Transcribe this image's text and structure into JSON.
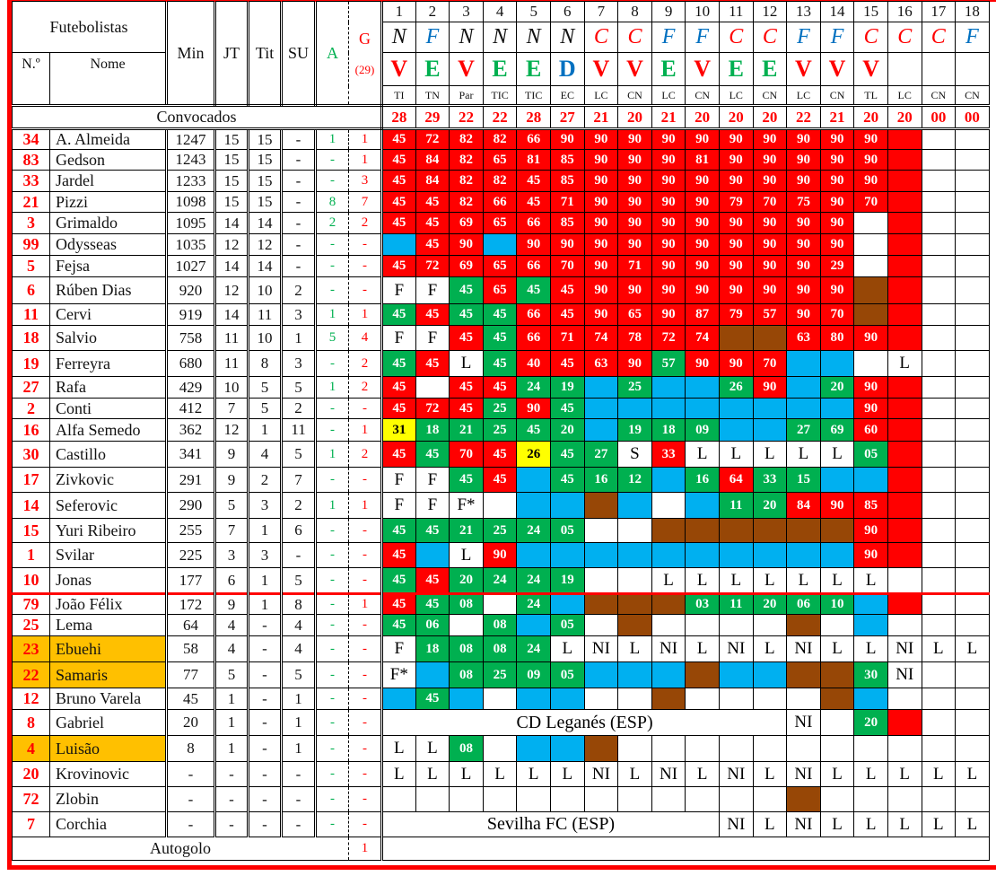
{
  "header": {
    "title": "Futebolistas",
    "no": "N.º",
    "name": "Nome",
    "min": "Min",
    "jt": "JT",
    "tit": "Tit",
    "su": "SU",
    "a": "A",
    "g": "G",
    "g_total": "(29)",
    "convocados": "Convocados"
  },
  "colors": {
    "R": "#ff0000",
    "G": "#00b050",
    "B": "#00b0f0",
    "N": "#974706",
    "Y": "#ffff00",
    "W": "#ffffff",
    "venue_N": "#111111",
    "venue_F": "#0070c0",
    "venue_C": "#ff0000",
    "result_V": "#ff0000",
    "result_E": "#00b050",
    "result_D": "#0070c0",
    "highlight": "#ffc000"
  },
  "matches": [
    {
      "n": "1",
      "venue": "N",
      "result": "V",
      "comp": "TI",
      "squad": "28"
    },
    {
      "n": "2",
      "venue": "F",
      "result": "E",
      "comp": "TN",
      "squad": "29"
    },
    {
      "n": "3",
      "venue": "N",
      "result": "V",
      "comp": "Par",
      "squad": "22"
    },
    {
      "n": "4",
      "venue": "N",
      "result": "E",
      "comp": "TIC",
      "squad": "22"
    },
    {
      "n": "5",
      "venue": "N",
      "result": "E",
      "comp": "TIC",
      "squad": "28"
    },
    {
      "n": "6",
      "venue": "N",
      "result": "D",
      "comp": "EC",
      "squad": "27"
    },
    {
      "n": "7",
      "venue": "C",
      "result": "V",
      "comp": "LC",
      "squad": "21"
    },
    {
      "n": "8",
      "venue": "C",
      "result": "V",
      "comp": "CN",
      "squad": "20"
    },
    {
      "n": "9",
      "venue": "F",
      "result": "E",
      "comp": "LC",
      "squad": "21"
    },
    {
      "n": "10",
      "venue": "F",
      "result": "V",
      "comp": "CN",
      "squad": "20"
    },
    {
      "n": "11",
      "venue": "C",
      "result": "E",
      "comp": "LC",
      "squad": "20"
    },
    {
      "n": "12",
      "venue": "C",
      "result": "E",
      "comp": "CN",
      "squad": "20"
    },
    {
      "n": "13",
      "venue": "F",
      "result": "V",
      "comp": "LC",
      "squad": "22"
    },
    {
      "n": "14",
      "venue": "F",
      "result": "V",
      "comp": "CN",
      "squad": "21"
    },
    {
      "n": "15",
      "venue": "C",
      "result": "V",
      "comp": "TL",
      "squad": "20"
    },
    {
      "n": "16",
      "venue": "C",
      "result": "",
      "comp": "LC",
      "squad": "20"
    },
    {
      "n": "17",
      "venue": "C",
      "result": "",
      "comp": "CN",
      "squad": "00"
    },
    {
      "n": "18",
      "venue": "F",
      "result": "",
      "comp": "CN",
      "squad": "00"
    }
  ],
  "players": [
    {
      "no": "34",
      "name": "A. Almeida",
      "min": "1247",
      "jt": "15",
      "tit": "15",
      "su": "-",
      "a": "1",
      "g": "1",
      "colors": "RRRRRRRRRRRRRRRRWW",
      "values": [
        "45",
        "72",
        "82",
        "82",
        "66",
        "90",
        "90",
        "90",
        "90",
        "90",
        "90",
        "90",
        "90",
        "90",
        "90",
        "",
        "",
        ""
      ]
    },
    {
      "no": "83",
      "name": "Gedson",
      "min": "1243",
      "jt": "15",
      "tit": "15",
      "su": "-",
      "a": "-",
      "g": "1",
      "colors": "RRRRRRRRRRRRRRRRWW",
      "values": [
        "45",
        "84",
        "82",
        "65",
        "81",
        "85",
        "90",
        "90",
        "90",
        "81",
        "90",
        "90",
        "90",
        "90",
        "90",
        "",
        "",
        ""
      ]
    },
    {
      "no": "33",
      "name": "Jardel",
      "min": "1233",
      "jt": "15",
      "tit": "15",
      "su": "-",
      "a": "-",
      "g": "3",
      "colors": "RRRRRRRRRRRRRRRRWW",
      "values": [
        "45",
        "84",
        "82",
        "82",
        "45",
        "85",
        "90",
        "90",
        "90",
        "90",
        "90",
        "90",
        "90",
        "90",
        "90",
        "",
        "",
        ""
      ]
    },
    {
      "no": "21",
      "name": "Pizzi",
      "min": "1098",
      "jt": "15",
      "tit": "15",
      "su": "-",
      "a": "8",
      "g": "7",
      "colors": "RRRRRRRRRRRRRRRRWW",
      "values": [
        "45",
        "45",
        "82",
        "66",
        "45",
        "71",
        "90",
        "90",
        "90",
        "90",
        "79",
        "70",
        "75",
        "90",
        "70",
        "",
        "",
        ""
      ]
    },
    {
      "no": "3",
      "name": "Grimaldo",
      "min": "1095",
      "jt": "14",
      "tit": "14",
      "su": "-",
      "a": "2",
      "g": "2",
      "colors": "RRRRRRRRRRRRRRWRWW",
      "values": [
        "45",
        "45",
        "69",
        "65",
        "66",
        "85",
        "90",
        "90",
        "90",
        "90",
        "90",
        "90",
        "90",
        "90",
        "",
        "",
        "",
        ""
      ]
    },
    {
      "no": "99",
      "name": "Odysseas",
      "min": "1035",
      "jt": "12",
      "tit": "12",
      "su": "-",
      "a": "-",
      "g": "-",
      "colors": "BRRBRRRRRRRRRRWRWW",
      "values": [
        "",
        "45",
        "90",
        "",
        "90",
        "90",
        "90",
        "90",
        "90",
        "90",
        "90",
        "90",
        "90",
        "90",
        "",
        "",
        "",
        ""
      ]
    },
    {
      "no": "5",
      "name": "Fejsa",
      "min": "1027",
      "jt": "14",
      "tit": "14",
      "su": "-",
      "a": "-",
      "g": "-",
      "colors": "RRRRRRRRRRRRRRWRWW",
      "values": [
        "45",
        "72",
        "69",
        "65",
        "66",
        "70",
        "90",
        "71",
        "90",
        "90",
        "90",
        "90",
        "90",
        "29",
        "",
        "",
        "",
        ""
      ]
    },
    {
      "no": "6",
      "name": "Rúben Dias",
      "min": "920",
      "jt": "12",
      "tit": "10",
      "su": "2",
      "a": "-",
      "g": "-",
      "colors": "WWGRGRRRRRRRRRNRWW",
      "values": [
        "F",
        "F",
        "45",
        "65",
        "45",
        "45",
        "90",
        "90",
        "90",
        "90",
        "90",
        "90",
        "90",
        "90",
        "",
        "",
        "",
        ""
      ]
    },
    {
      "no": "11",
      "name": "Cervi",
      "min": "919",
      "jt": "14",
      "tit": "11",
      "su": "3",
      "a": "1",
      "g": "1",
      "colors": "GRGGRRRRRRRRRRNRWW",
      "values": [
        "45",
        "45",
        "45",
        "45",
        "66",
        "45",
        "90",
        "65",
        "90",
        "87",
        "79",
        "57",
        "90",
        "70",
        "",
        "",
        "",
        ""
      ]
    },
    {
      "no": "18",
      "name": "Salvio",
      "min": "758",
      "jt": "11",
      "tit": "10",
      "su": "1",
      "a": "5",
      "g": "4",
      "colors": "WWRGRRRRRRNNRRRRWW",
      "values": [
        "F",
        "F",
        "45",
        "45",
        "66",
        "71",
        "74",
        "78",
        "72",
        "74",
        "",
        "",
        "63",
        "80",
        "90",
        "",
        "",
        ""
      ]
    },
    {
      "no": "19",
      "name": "Ferreyra",
      "min": "680",
      "jt": "11",
      "tit": "8",
      "su": "3",
      "a": "-",
      "g": "2",
      "colors": "GRWGRRRRGRRRBBWWWW",
      "values": [
        "45",
        "45",
        "L",
        "45",
        "40",
        "45",
        "63",
        "90",
        "57",
        "90",
        "90",
        "70",
        "",
        "",
        "",
        "L",
        "",
        ""
      ]
    },
    {
      "no": "27",
      "name": "Rafa",
      "min": "429",
      "jt": "10",
      "tit": "5",
      "su": "5",
      "a": "1",
      "g": "2",
      "colors": "RWRRGGBGBBGRBGRRWW",
      "values": [
        "45",
        "",
        "45",
        "45",
        "24",
        "19",
        "",
        "25",
        "",
        "",
        "26",
        "90",
        "",
        "20",
        "90",
        "",
        "",
        ""
      ]
    },
    {
      "no": "2",
      "name": "Conti",
      "min": "412",
      "jt": "7",
      "tit": "5",
      "su": "2",
      "a": "-",
      "g": "-",
      "colors": "RRRGRGBBBBBBBBRRWW",
      "values": [
        "45",
        "72",
        "45",
        "25",
        "90",
        "45",
        "",
        "",
        "",
        "",
        "",
        "",
        "",
        "",
        "90",
        "",
        "",
        ""
      ]
    },
    {
      "no": "16",
      "name": "Alfa Semedo",
      "min": "362",
      "jt": "12",
      "tit": "1",
      "su": "11",
      "a": "-",
      "g": "1",
      "colors": "YGGGGGBGGGBBGGRRWW",
      "values": [
        "31",
        "18",
        "21",
        "25",
        "45",
        "20",
        "",
        "19",
        "18",
        "09",
        "",
        "",
        "27",
        "69",
        "60",
        "",
        "",
        ""
      ]
    },
    {
      "no": "30",
      "name": "Castillo",
      "min": "341",
      "jt": "9",
      "tit": "4",
      "su": "5",
      "a": "1",
      "g": "2",
      "colors": "RGRRYGGWRWWWWWGRWW",
      "values": [
        "45",
        "45",
        "70",
        "45",
        "26",
        "45",
        "27",
        "S",
        "33",
        "L",
        "L",
        "L",
        "L",
        "L",
        "05",
        "",
        "",
        ""
      ]
    },
    {
      "no": "17",
      "name": "Zivkovic",
      "min": "291",
      "jt": "9",
      "tit": "2",
      "su": "7",
      "a": "-",
      "g": "-",
      "colors": "WWGRBGGGBGRGGBBRWW",
      "values": [
        "F",
        "F",
        "45",
        "45",
        "",
        "45",
        "16",
        "12",
        "",
        "16",
        "64",
        "33",
        "15",
        "",
        "",
        "",
        "",
        ""
      ]
    },
    {
      "no": "14",
      "name": "Seferovic",
      "min": "290",
      "jt": "5",
      "tit": "3",
      "su": "2",
      "a": "1",
      "g": "1",
      "colors": "WWWWBBNBWBGGRRRRWW",
      "values": [
        "F",
        "F",
        "F*",
        "",
        "",
        "",
        "",
        "",
        "",
        "",
        "11",
        "20",
        "84",
        "90",
        "85",
        "",
        "",
        ""
      ]
    },
    {
      "no": "15",
      "name": "Yuri Ribeiro",
      "min": "255",
      "jt": "7",
      "tit": "1",
      "su": "6",
      "a": "-",
      "g": "-",
      "colors": "GGGGGGWWNNNNNNRRWW",
      "values": [
        "45",
        "45",
        "21",
        "25",
        "24",
        "05",
        "",
        "",
        "",
        "",
        "",
        "",
        "",
        "",
        "90",
        "",
        "",
        ""
      ]
    },
    {
      "no": "1",
      "name": "Svilar",
      "min": "225",
      "jt": "3",
      "tit": "3",
      "su": "-",
      "a": "-",
      "g": "-",
      "colors": "RBWRBBBBBBBBBBRRWW",
      "values": [
        "45",
        "",
        "L",
        "90",
        "",
        "",
        "",
        "",
        "",
        "",
        "",
        "",
        "",
        "",
        "90",
        "",
        "",
        ""
      ]
    },
    {
      "no": "10",
      "name": "Jonas",
      "min": "177",
      "jt": "6",
      "tit": "1",
      "su": "5",
      "a": "-",
      "g": "-",
      "colors": "GRGGGGWWWWWWWWWWWW",
      "values": [
        "45",
        "45",
        "20",
        "24",
        "24",
        "19",
        "",
        "",
        "L",
        "L",
        "L",
        "L",
        "L",
        "L",
        "L",
        "",
        "",
        ""
      ]
    },
    {
      "no": "79",
      "name": "João Félix",
      "min": "172",
      "jt": "9",
      "tit": "1",
      "su": "8",
      "a": "-",
      "g": "1",
      "colors": "RGGWGBNNNGGGGGBRWW",
      "values": [
        "45",
        "45",
        "08",
        "",
        "24",
        "",
        "",
        "",
        "",
        "03",
        "11",
        "20",
        "06",
        "10",
        "",
        "",
        "",
        ""
      ]
    },
    {
      "no": "25",
      "name": "Lema",
      "min": "64",
      "jt": "4",
      "tit": "-",
      "su": "4",
      "a": "-",
      "g": "-",
      "colors": "GGWGBGWNWWWWNWBWWW",
      "values": [
        "45",
        "06",
        "",
        "08",
        "",
        "05",
        "",
        "",
        "",
        "",
        "",
        "",
        "",
        "",
        "",
        "",
        "",
        ""
      ]
    },
    {
      "no": "23",
      "name": "Ebuehi",
      "min": "58",
      "jt": "4",
      "tit": "-",
      "su": "4",
      "a": "-",
      "g": "-",
      "highlight": true,
      "colors": "WGGGGWWWWWWWWWWWWW",
      "values": [
        "F",
        "18",
        "08",
        "08",
        "24",
        "L",
        "NI",
        "L",
        "NI",
        "L",
        "NI",
        "L",
        "NI",
        "L",
        "L",
        "NI",
        "L",
        "L"
      ]
    },
    {
      "no": "22",
      "name": "Samaris",
      "min": "77",
      "jt": "5",
      "tit": "-",
      "su": "5",
      "a": "-",
      "g": "-",
      "highlight": true,
      "colors": "WBGGGGBBBNBBNNGWWW",
      "values": [
        "F*",
        "",
        "08",
        "25",
        "09",
        "05",
        "",
        "",
        "",
        "",
        "",
        "",
        "",
        "",
        "30",
        "NI",
        "",
        ""
      ]
    },
    {
      "no": "12",
      "name": "Bruno Varela",
      "min": "45",
      "jt": "1",
      "tit": "-",
      "su": "1",
      "a": "-",
      "g": "-",
      "colors": "BGBWBBWWNWWWWNBWWW",
      "values": [
        "",
        "45",
        "",
        "",
        "",
        "",
        "",
        "",
        "",
        "",
        "",
        "",
        "",
        "",
        "",
        "",
        "",
        ""
      ]
    },
    {
      "no": "8",
      "name": "Gabriel",
      "min": "20",
      "jt": "1",
      "tit": "-",
      "su": "1",
      "a": "-",
      "g": "-",
      "span": {
        "cols": 12,
        "text": "CD Leganés (ESP)"
      },
      "colors": "WWGRWW",
      "values": [
        "NI",
        "",
        "20",
        "",
        "",
        ""
      ]
    },
    {
      "no": "4",
      "name": "Luisão",
      "min": "8",
      "jt": "1",
      "tit": "-",
      "su": "1",
      "a": "-",
      "g": "-",
      "highlight": true,
      "colors": "WWGWBBNWWWWWWWWWWW",
      "values": [
        "L",
        "L",
        "08",
        "",
        "",
        "",
        "",
        "",
        "",
        "",
        "",
        "",
        "",
        "",
        "",
        "",
        "",
        ""
      ]
    },
    {
      "no": "20",
      "name": "Krovinovic",
      "min": "-",
      "jt": "-",
      "tit": "-",
      "su": "-",
      "a": "-",
      "g": "-",
      "colors": "WWWWWWWWWWWWWWWWWW",
      "values": [
        "L",
        "L",
        "L",
        "L",
        "L",
        "L",
        "NI",
        "L",
        "NI",
        "L",
        "NI",
        "L",
        "NI",
        "L",
        "L",
        "L",
        "L",
        "L"
      ]
    },
    {
      "no": "72",
      "name": "Zlobin",
      "min": "-",
      "jt": "-",
      "tit": "-",
      "su": "-",
      "a": "-",
      "g": "-",
      "colors": "WWWWWWWWWWWWNWWWWW",
      "values": [
        "",
        "",
        "",
        "",
        "",
        "",
        "",
        "",
        "",
        "",
        "",
        "",
        "",
        "",
        "",
        "",
        "",
        ""
      ]
    },
    {
      "no": "7",
      "name": "Corchia",
      "min": "-",
      "jt": "-",
      "tit": "-",
      "su": "-",
      "a": "-",
      "g": "-",
      "span": {
        "cols": 10,
        "text": "Sevilha FC (ESP)"
      },
      "colors": "WWWWWWWW",
      "values": [
        "NI",
        "L",
        "NI",
        "L",
        "L",
        "L",
        "L",
        "L"
      ]
    }
  ],
  "autogolo": {
    "label": "Autogolo",
    "g": "1"
  }
}
